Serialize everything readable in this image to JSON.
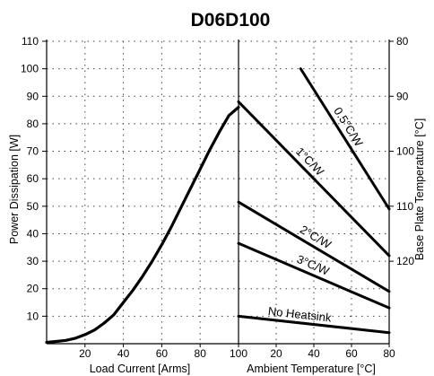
{
  "chart_data": {
    "type": "line",
    "title": "D06D100",
    "left_panel": {
      "xlabel": "Load Current [Arms]",
      "ylabel": "Power Dissipation [W]",
      "xlim": [
        0,
        100
      ],
      "ylim": [
        0,
        110
      ],
      "xticks": [
        "20",
        "40",
        "60",
        "80",
        "100"
      ],
      "yticks": [
        "10",
        "20",
        "30",
        "40",
        "50",
        "60",
        "70",
        "80",
        "90",
        "100",
        "110"
      ],
      "grid": true,
      "series": [
        {
          "x": [
            0,
            5,
            10,
            15,
            20,
            25,
            30,
            35,
            40,
            45,
            50,
            55,
            60,
            65,
            70,
            75,
            80,
            85,
            90,
            95,
            100
          ],
          "y": [
            0.5,
            0.8,
            1.2,
            2.0,
            3.3,
            5.0,
            7.5,
            10.5,
            15.0,
            19.5,
            24.5,
            30.0,
            36.0,
            42.5,
            49.5,
            56.5,
            63.5,
            70.5,
            77.0,
            83.0,
            86.0
          ]
        }
      ]
    },
    "right_panel": {
      "xlabel": "Ambient Temperature [°C]",
      "ylabel": "Base Plate Temperature [°C]",
      "xlim": [
        0,
        80
      ],
      "xticks": [
        "20",
        "40",
        "60",
        "80"
      ],
      "yticks_right": [
        "80",
        "90",
        "100",
        "110",
        "120"
      ],
      "series": [
        {
          "name": "0.5°C/W",
          "x": [
            33,
            80
          ],
          "y": [
            100,
            49
          ]
        },
        {
          "name": "1°C/W",
          "x": [
            0,
            80
          ],
          "y": [
            88,
            32
          ]
        },
        {
          "name": "2°C/W",
          "x": [
            0,
            80
          ],
          "y": [
            51.5,
            19
          ]
        },
        {
          "name": "3°C/W",
          "x": [
            0,
            80
          ],
          "y": [
            36.5,
            13
          ]
        },
        {
          "name": "No Heatsink",
          "x": [
            0,
            80
          ],
          "y": [
            10,
            4
          ]
        }
      ]
    }
  }
}
